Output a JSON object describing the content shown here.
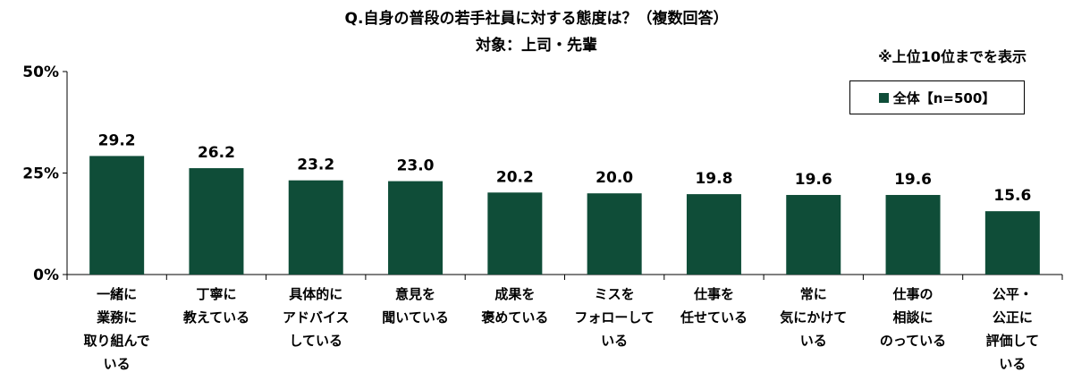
{
  "title": "Q.自身の普段の若手社員に対する態度は？（複数回答）",
  "subtitle": "対象：上司・先輩",
  "note": "※上位10位までを表示",
  "legend": {
    "label": "全体【n=500】",
    "color": "#0f4d38"
  },
  "chart_data": {
    "type": "bar",
    "title": "Q.自身の普段の若手社員に対する態度は？（複数回答）",
    "subtitle": "対象：上司・先輩",
    "ylim": [
      0,
      50
    ],
    "yticks": [
      "0%",
      "25%",
      "50%"
    ],
    "ytick_values": [
      0,
      25,
      50
    ],
    "grid": false,
    "legend_position": "top-right",
    "categories": [
      [
        "一緒に",
        "業務に",
        "取り組んで",
        "いる"
      ],
      [
        "丁寧に",
        "教えている"
      ],
      [
        "具体的に",
        "アドバイス",
        "している"
      ],
      [
        "意見を",
        "聞いている"
      ],
      [
        "成果を",
        "褒めている"
      ],
      [
        "ミスを",
        "フォローして",
        "いる"
      ],
      [
        "仕事を",
        "任せている"
      ],
      [
        "常に",
        "気にかけて",
        "いる"
      ],
      [
        "仕事の",
        "相談に",
        "のっている"
      ],
      [
        "公平・",
        "公正に",
        "評価して",
        "いる"
      ]
    ],
    "series": [
      {
        "name": "全体【n=500】",
        "values": [
          29.2,
          26.2,
          23.2,
          23.0,
          20.2,
          20.0,
          19.8,
          19.6,
          19.6,
          15.6
        ],
        "labels": [
          "29.2",
          "26.2",
          "23.2",
          "23.0",
          "20.2",
          "20.0",
          "19.8",
          "19.6",
          "19.6",
          "15.6"
        ]
      }
    ]
  }
}
